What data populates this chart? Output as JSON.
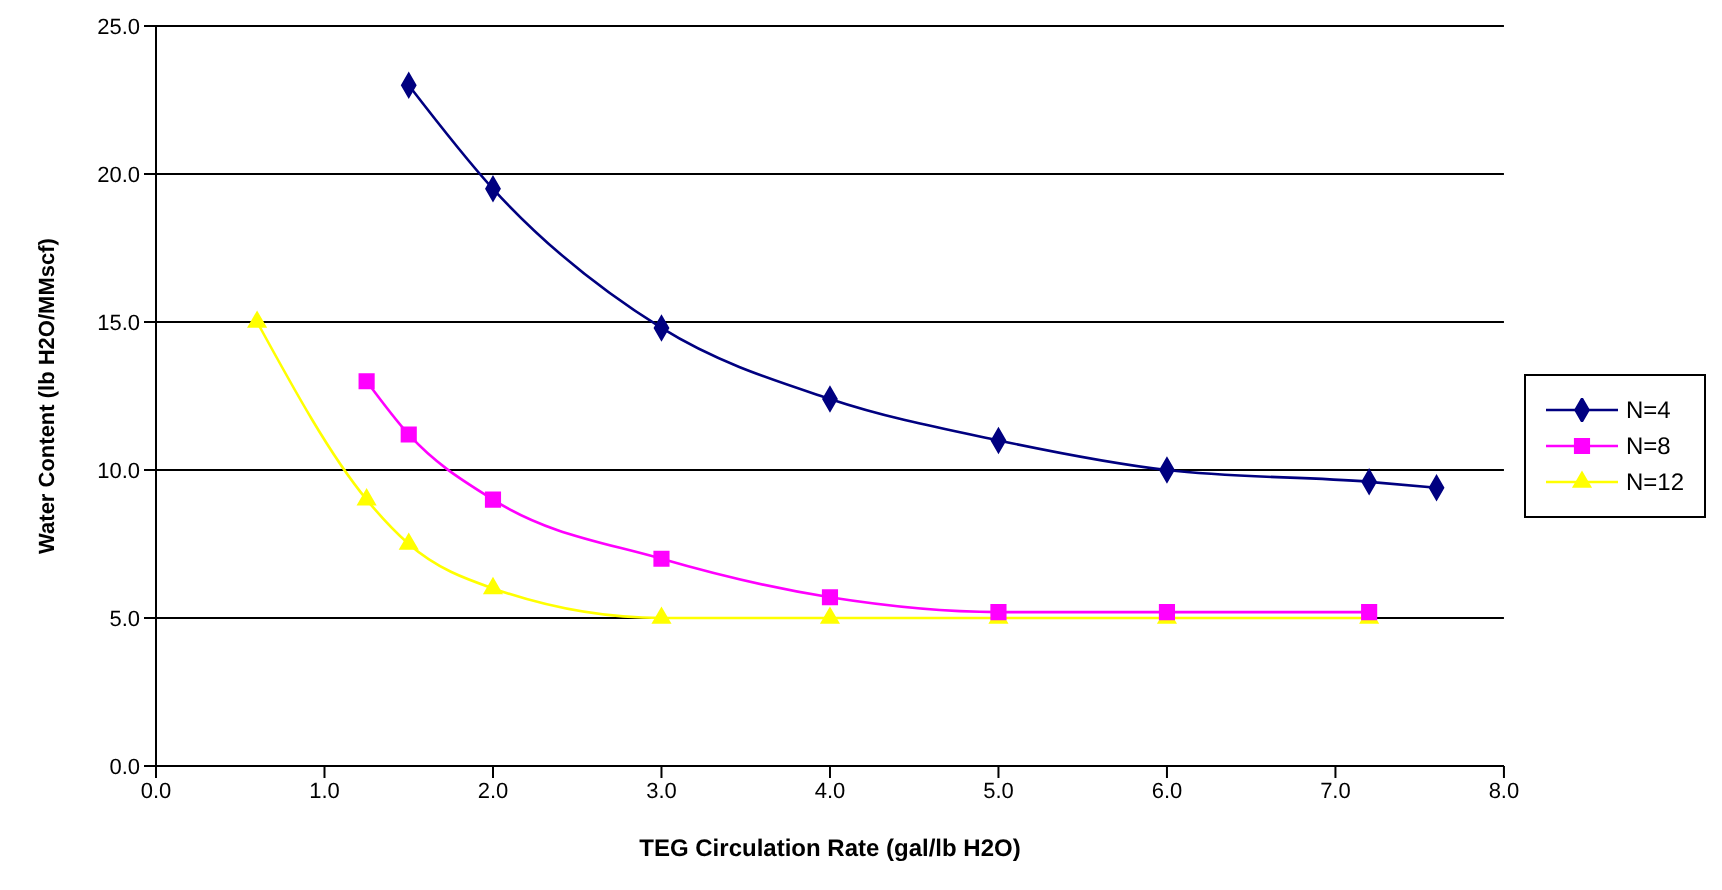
{
  "chart_data": {
    "type": "line",
    "xlabel": "TEG Circulation Rate (gal/lb H2O)",
    "ylabel": "Water Content (lb H2O/MMscf)",
    "xlim": [
      0,
      8
    ],
    "xticks": [
      {
        "value": 0,
        "label": "0.0"
      },
      {
        "value": 1,
        "label": "1.0"
      },
      {
        "value": 2,
        "label": "2.0"
      },
      {
        "value": 3,
        "label": "3.0"
      },
      {
        "value": 4,
        "label": "4.0"
      },
      {
        "value": 5,
        "label": "5.0"
      },
      {
        "value": 6,
        "label": "6.0"
      },
      {
        "value": 7,
        "label": "7.0"
      },
      {
        "value": 8,
        "label": "8.0"
      }
    ],
    "ylim": [
      0,
      25
    ],
    "yticks": [
      {
        "value": 0,
        "label": "0.0"
      },
      {
        "value": 5,
        "label": "5.0"
      },
      {
        "value": 10,
        "label": "10.0"
      },
      {
        "value": 15,
        "label": "15.0"
      },
      {
        "value": 20,
        "label": "20.0"
      },
      {
        "value": 25,
        "label": "25.0"
      }
    ],
    "grid": "y",
    "legend": "right",
    "series": [
      {
        "name": "N=4",
        "color": "#000080",
        "marker": "diamond",
        "x": [
          1.5,
          2,
          3,
          4,
          5,
          6,
          7.2,
          7.6
        ],
        "values": [
          23.0,
          19.5,
          14.8,
          12.4,
          11.0,
          10.0,
          9.6,
          9.4
        ]
      },
      {
        "name": "N=8",
        "color": "#ff00ff",
        "marker": "square",
        "x": [
          1.25,
          1.5,
          2,
          3,
          4,
          5,
          6,
          7.2
        ],
        "values": [
          13.0,
          11.2,
          9.0,
          7.0,
          5.7,
          5.2,
          5.2,
          5.2
        ]
      },
      {
        "name": "N=12",
        "color": "#ffff00",
        "marker": "triangle",
        "x": [
          0.6,
          1.25,
          1.5,
          2,
          3,
          4,
          5,
          6,
          7.2
        ],
        "values": [
          15.0,
          9.0,
          7.5,
          6.0,
          5.0,
          5.0,
          5.0,
          5.0,
          5.0
        ]
      }
    ]
  }
}
